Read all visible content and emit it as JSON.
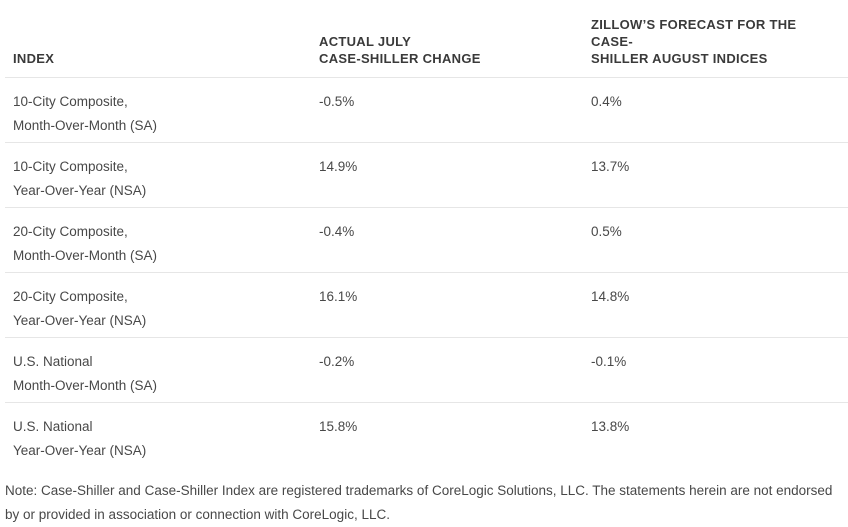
{
  "table": {
    "headers": [
      {
        "line1": "",
        "line2": "INDEX"
      },
      {
        "line1": "ACTUAL JULY",
        "line2": "CASE-SHILLER CHANGE"
      },
      {
        "line1": "ZILLOW’S FORECAST FOR THE CASE-",
        "line2": "SHILLER AUGUST INDICES"
      }
    ],
    "rows": [
      {
        "index_line1": "10-City Composite,",
        "index_line2": "Month-Over-Month (SA)",
        "actual": "-0.5%",
        "forecast": "0.4%"
      },
      {
        "index_line1": "10-City Composite,",
        "index_line2": "Year-Over-Year (NSA)",
        "actual": "14.9%",
        "forecast": "13.7%"
      },
      {
        "index_line1": "20-City Composite,",
        "index_line2": "Month-Over-Month (SA)",
        "actual": "-0.4%",
        "forecast": "0.5%"
      },
      {
        "index_line1": "20-City Composite,",
        "index_line2": "Year-Over-Year (NSA)",
        "actual": "16.1%",
        "forecast": "14.8%"
      },
      {
        "index_line1": "U.S. National",
        "index_line2": "Month-Over-Month (SA)",
        "actual": "-0.2%",
        "forecast": "-0.1%"
      },
      {
        "index_line1": "U.S. National",
        "index_line2": "Year-Over-Year (NSA)",
        "actual": "15.8%",
        "forecast": "13.8%"
      }
    ]
  },
  "note": "Note: Case-Shiller and Case-Shiller Index are registered trademarks of CoreLogic Solutions, LLC. The statements herein are not endorsed by or provided in association or connection with CoreLogic, LLC."
}
